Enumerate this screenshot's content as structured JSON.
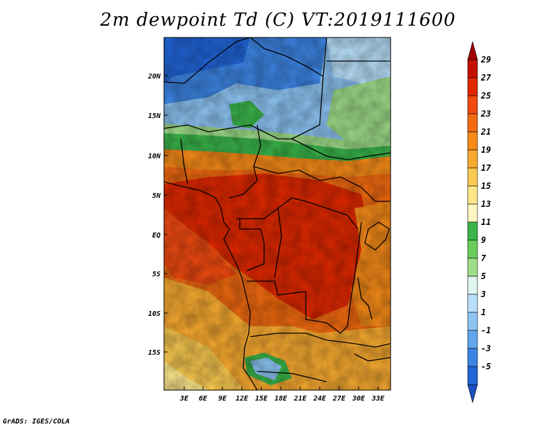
{
  "title": "2m dewpoint Td (C) VT:2019111600",
  "credit": "GrADS: IGES/COLA",
  "map": {
    "lat_labels": [
      "20N",
      "15N",
      "10N",
      "5N",
      "EQ",
      "5S",
      "10S",
      "15S"
    ],
    "lon_labels": [
      "3E",
      "6E",
      "9E",
      "12E",
      "15E",
      "18E",
      "21E",
      "24E",
      "27E",
      "30E",
      "33E"
    ]
  },
  "colorbar": {
    "labels": [
      "29",
      "27",
      "25",
      "23",
      "21",
      "19",
      "17",
      "15",
      "13",
      "11",
      "9",
      "7",
      "5",
      "3",
      "1",
      "-1",
      "-3",
      "-5"
    ],
    "colors": [
      "#a00000",
      "#c41000",
      "#e02800",
      "#f04a10",
      "#f26a10",
      "#f58a18",
      "#f8aa30",
      "#fbca50",
      "#fde68a",
      "#fff5c0",
      "#3ab54a",
      "#6acd5a",
      "#9edd8a",
      "#dff4f0",
      "#b8e0fa",
      "#8ec5f5",
      "#62a6ee",
      "#3d85e4",
      "#2165d8",
      "#1a4fc0"
    ]
  }
}
